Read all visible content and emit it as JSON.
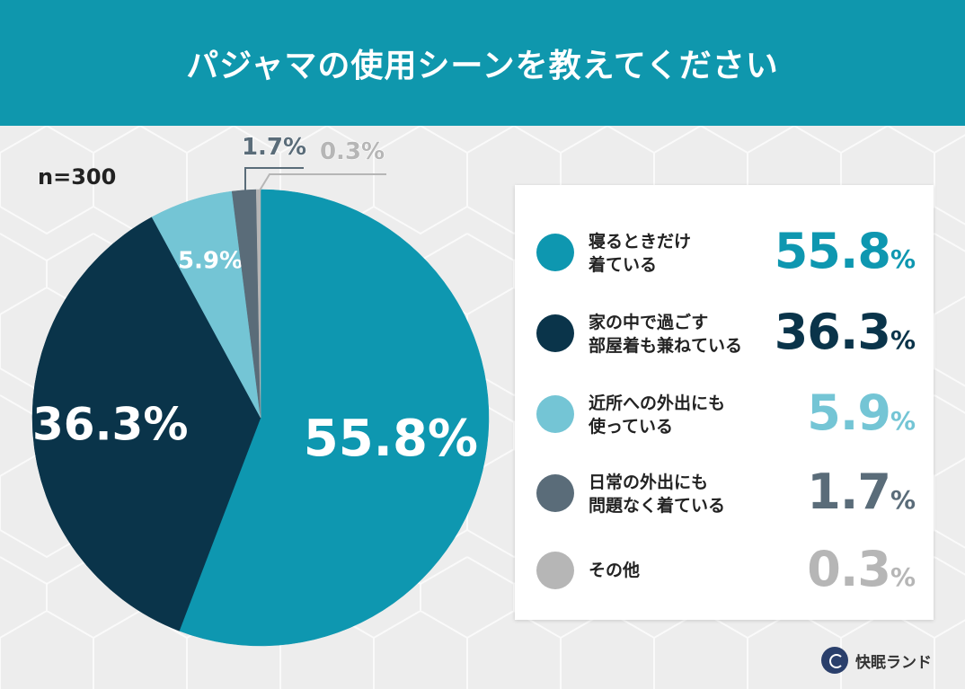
{
  "header": {
    "title": "パジャマの使用シーンを教えてください"
  },
  "sample_label": "n=300",
  "colors": {
    "header_bg": "#0f97ad",
    "background": "#ededed",
    "series": [
      "#0e97b0",
      "#0a344a",
      "#74c5d5",
      "#5a6c79",
      "#b6b6b6"
    ]
  },
  "legend": {
    "items": [
      {
        "lines": [
          "寝るときだけ",
          "着ている"
        ],
        "value": "55.8",
        "unit": "%"
      },
      {
        "lines": [
          "家の中で過ごす",
          "部屋着も兼ねている"
        ],
        "value": "36.3",
        "unit": "%"
      },
      {
        "lines": [
          "近所への外出にも",
          "使っている"
        ],
        "value": "5.9",
        "unit": "%"
      },
      {
        "lines": [
          "日常の外出にも",
          "問題なく着ている"
        ],
        "value": "1.7",
        "unit": "%"
      },
      {
        "lines": [
          "その他"
        ],
        "value": "0.3",
        "unit": "%"
      }
    ]
  },
  "logo": {
    "text": "快眠ランド"
  },
  "chart_data": {
    "type": "pie",
    "title": "パジャマの使用シーンを教えてください",
    "categories": [
      "寝るときだけ着ている",
      "家の中で過ごす部屋着も兼ねている",
      "近所への外出にも使っている",
      "日常の外出にも問題なく着ている",
      "その他"
    ],
    "values": [
      55.8,
      36.3,
      5.9,
      1.7,
      0.3
    ],
    "labels": [
      "55.8%",
      "36.3%",
      "5.9%",
      "1.7%",
      "0.3%"
    ],
    "unit": "%",
    "legend": "right"
  }
}
